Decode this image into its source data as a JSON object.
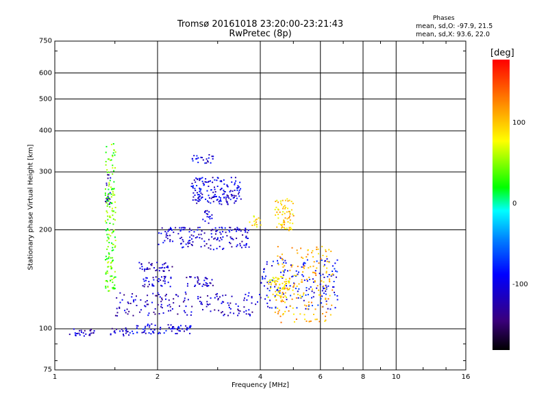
{
  "chart_data": {
    "type": "scatter",
    "title": "Tromsø 20161018 23:20:00-23:21:43",
    "subtitle": "RwPretec (8p)",
    "xlabel": "Frequency [MHz]",
    "ylabel": "Stationary phase Virtual Height [km]",
    "x_scale": "log",
    "y_scale": "log",
    "xlim": [
      1,
      16
    ],
    "ylim": [
      75,
      750
    ],
    "x_ticks": [
      "1",
      "2",
      "4",
      "6",
      "8",
      "10",
      "16"
    ],
    "x_tick_values": [
      1,
      2,
      4,
      6,
      8,
      10,
      16
    ],
    "y_ticks": [
      "75",
      "100",
      "200",
      "300",
      "400",
      "500",
      "600",
      "750"
    ],
    "y_tick_values": [
      75,
      100,
      200,
      300,
      400,
      500,
      600,
      750
    ],
    "grid": true,
    "phases_panel": {
      "title": "Phases",
      "line_o": "mean, sd,O: -97.9, 21.5",
      "line_x": "mean, sd,X:  93.6, 22.0"
    },
    "colorbar": {
      "unit": "[deg]",
      "ticks": [
        "100",
        "0",
        "-100"
      ],
      "tick_values": [
        100,
        0,
        -100
      ],
      "range": [
        -180,
        180
      ],
      "colors": [
        "#000000",
        "#3a007a",
        "#0000ff",
        "#0080ff",
        "#00ffff",
        "#00ff00",
        "#ffff00",
        "#ff8000",
        "#ff0000"
      ]
    },
    "clusters": [
      {
        "x": [
          1.1,
          1.3
        ],
        "y": [
          95,
          101
        ],
        "phase": -110
      },
      {
        "x": [
          1.45,
          1.65
        ],
        "y": [
          95,
          101
        ],
        "phase": -110
      },
      {
        "x": [
          1.65,
          2.5
        ],
        "y": [
          97,
          104
        ],
        "phase": -100
      },
      {
        "x": [
          1.5,
          4.0
        ],
        "y": [
          110,
          130
        ],
        "phase": -110
      },
      {
        "x": [
          4.0,
          6.8
        ],
        "y": [
          115,
          165
        ],
        "phase": -90
      },
      {
        "x": [
          4.2,
          5.0
        ],
        "y": [
          125,
          145
        ],
        "phase": 100
      },
      {
        "x": [
          4.4,
          6.5
        ],
        "y": [
          105,
          180
        ],
        "phase": 120
      },
      {
        "x": [
          1.75,
          2.2
        ],
        "y": [
          150,
          160
        ],
        "phase": -110
      },
      {
        "x": [
          1.8,
          2.2
        ],
        "y": [
          135,
          145
        ],
        "phase": -110
      },
      {
        "x": [
          2.4,
          2.9
        ],
        "y": [
          135,
          145
        ],
        "phase": -110
      },
      {
        "x": [
          2.0,
          3.7
        ],
        "y": [
          175,
          205
        ],
        "phase": -105
      },
      {
        "x": [
          3.7,
          4.0
        ],
        "y": [
          205,
          222
        ],
        "phase": 105
      },
      {
        "x": [
          4.4,
          5.0
        ],
        "y": [
          200,
          250
        ],
        "phase": 108
      },
      {
        "x": [
          2.5,
          3.5
        ],
        "y": [
          240,
          290
        ],
        "phase": -100
      },
      {
        "x": [
          2.5,
          2.9
        ],
        "y": [
          320,
          340
        ],
        "phase": -100
      },
      {
        "x": [
          2.7,
          2.9
        ],
        "y": [
          210,
          230
        ],
        "phase": -100
      },
      {
        "x": [
          1.4,
          1.45
        ],
        "y": [
          240,
          300
        ],
        "phase": -120
      },
      {
        "x": [
          1.4,
          1.5
        ],
        "y": [
          130,
          370
        ],
        "phase": 60
      }
    ]
  }
}
